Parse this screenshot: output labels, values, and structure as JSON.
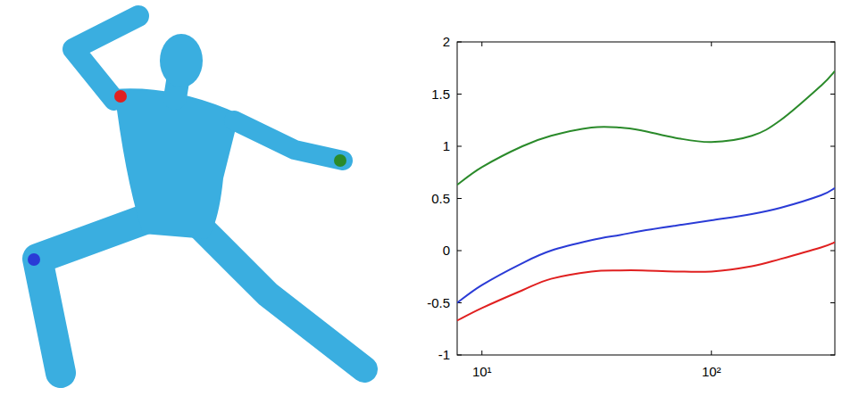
{
  "chart_data": {
    "type": "line",
    "log": "x",
    "grid": false,
    "x": [
      7.8,
      10,
      15,
      20,
      30,
      40,
      50,
      70,
      100,
      150,
      200,
      300,
      345
    ],
    "xlim": [
      7.8,
      345
    ],
    "xticks": [
      {
        "value": 10,
        "label": "10¹"
      },
      {
        "value": 100,
        "label": "10²"
      }
    ],
    "ylim": [
      -1,
      2
    ],
    "yticks": [
      -1,
      -0.5,
      0,
      0.5,
      1,
      1.5,
      2
    ],
    "series": [
      {
        "color": "#2a8a2a",
        "values": [
          0.63,
          0.8,
          1.0,
          1.1,
          1.18,
          1.18,
          1.15,
          1.08,
          1.04,
          1.1,
          1.25,
          1.58,
          1.72
        ]
      },
      {
        "color": "#2a3bd6",
        "values": [
          -0.5,
          -0.33,
          -0.12,
          0.0,
          0.1,
          0.15,
          0.19,
          0.24,
          0.29,
          0.35,
          0.41,
          0.53,
          0.6
        ]
      },
      {
        "color": "#e02020",
        "values": [
          -0.67,
          -0.55,
          -0.38,
          -0.27,
          -0.2,
          -0.19,
          -0.19,
          -0.2,
          -0.2,
          -0.15,
          -0.08,
          0.03,
          0.08
        ]
      }
    ]
  }
}
